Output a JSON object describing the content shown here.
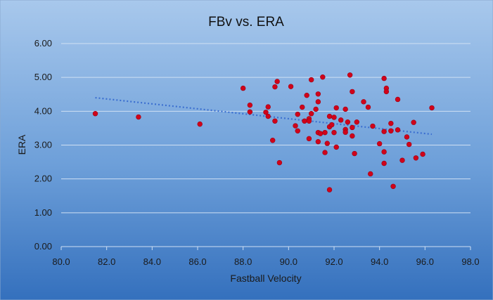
{
  "chart_data": {
    "type": "scatter",
    "title": "FBv vs. ERA",
    "xlabel": "Fastball Velocity",
    "ylabel": "ERA",
    "xlim": [
      80.0,
      98.0
    ],
    "ylim": [
      0.0,
      6.0
    ],
    "x_ticks": [
      "80.0",
      "82.0",
      "84.0",
      "86.0",
      "88.0",
      "90.0",
      "92.0",
      "94.0",
      "96.0",
      "98.0"
    ],
    "y_ticks": [
      "0.00",
      "1.00",
      "2.00",
      "3.00",
      "4.00",
      "5.00",
      "6.00"
    ],
    "grid": "horizontal",
    "legend": "none",
    "point_color": "#d0021b",
    "trendline": {
      "type": "linear",
      "x": [
        81.5,
        96.3
      ],
      "y": [
        4.4,
        3.32
      ],
      "color": "#3b6fd0",
      "style": "dotted"
    },
    "points": [
      [
        81.5,
        3.93
      ],
      [
        83.4,
        3.83
      ],
      [
        86.1,
        3.62
      ],
      [
        88.0,
        4.68
      ],
      [
        88.3,
        4.18
      ],
      [
        88.3,
        3.98
      ],
      [
        89.0,
        3.97
      ],
      [
        89.1,
        4.13
      ],
      [
        89.1,
        3.85
      ],
      [
        89.3,
        3.14
      ],
      [
        89.4,
        4.72
      ],
      [
        89.5,
        4.88
      ],
      [
        89.4,
        3.71
      ],
      [
        89.6,
        2.48
      ],
      [
        90.1,
        4.73
      ],
      [
        90.3,
        3.57
      ],
      [
        90.4,
        3.91
      ],
      [
        90.4,
        3.42
      ],
      [
        90.6,
        4.12
      ],
      [
        90.7,
        3.71
      ],
      [
        90.8,
        4.47
      ],
      [
        90.9,
        3.78
      ],
      [
        90.9,
        3.71
      ],
      [
        90.9,
        3.19
      ],
      [
        91.0,
        4.93
      ],
      [
        91.0,
        3.93
      ],
      [
        91.2,
        4.06
      ],
      [
        91.3,
        4.51
      ],
      [
        91.3,
        4.28
      ],
      [
        91.3,
        3.37
      ],
      [
        91.3,
        3.1
      ],
      [
        91.4,
        3.34
      ],
      [
        91.5,
        5.01
      ],
      [
        91.6,
        3.37
      ],
      [
        91.6,
        2.78
      ],
      [
        91.7,
        3.05
      ],
      [
        91.8,
        3.85
      ],
      [
        91.8,
        3.54
      ],
      [
        91.8,
        1.68
      ],
      [
        91.9,
        3.6
      ],
      [
        92.0,
        3.82
      ],
      [
        92.0,
        3.37
      ],
      [
        92.1,
        4.1
      ],
      [
        92.1,
        2.94
      ],
      [
        92.3,
        3.74
      ],
      [
        92.5,
        4.06
      ],
      [
        92.5,
        3.46
      ],
      [
        92.5,
        3.38
      ],
      [
        92.6,
        3.68
      ],
      [
        92.7,
        5.07
      ],
      [
        92.8,
        4.58
      ],
      [
        92.8,
        3.52
      ],
      [
        92.8,
        3.27
      ],
      [
        92.9,
        2.75
      ],
      [
        93.0,
        3.68
      ],
      [
        93.3,
        4.28
      ],
      [
        93.5,
        4.12
      ],
      [
        93.6,
        2.15
      ],
      [
        93.7,
        3.56
      ],
      [
        94.0,
        3.04
      ],
      [
        94.2,
        4.97
      ],
      [
        94.2,
        3.4
      ],
      [
        94.2,
        2.8
      ],
      [
        94.2,
        2.46
      ],
      [
        94.3,
        4.68
      ],
      [
        94.3,
        4.58
      ],
      [
        94.5,
        3.64
      ],
      [
        94.5,
        3.42
      ],
      [
        94.6,
        1.78
      ],
      [
        94.8,
        4.35
      ],
      [
        94.8,
        3.45
      ],
      [
        95.0,
        2.55
      ],
      [
        95.2,
        3.24
      ],
      [
        95.3,
        3.02
      ],
      [
        95.5,
        3.67
      ],
      [
        95.6,
        2.62
      ],
      [
        95.9,
        2.73
      ],
      [
        96.3,
        4.1
      ]
    ]
  }
}
